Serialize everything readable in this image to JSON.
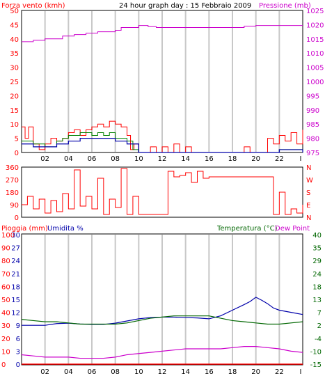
{
  "colors": {
    "wind": "#ff0000",
    "gust": "#008000",
    "wind_dir": "#ff0000",
    "pressure": "#cc00cc",
    "rain": "#ff0000",
    "humidity": "#0000aa",
    "temperature": "#006600",
    "dew_point": "#cc00cc",
    "vgrid": "#c8c8c8",
    "frame": "#000000"
  },
  "header": {
    "title": "24 hour graph day : 15 Febbraio 2009",
    "left_label": "Forza vento (kmh)",
    "right_label": "Pressione (mb)"
  },
  "middle": {
    "right_letters": [
      "N",
      "W",
      "S",
      "E",
      "N"
    ]
  },
  "bottom": {
    "rain_label": "Pioggia (mm)",
    "humidity_label": "Umidita %",
    "temp_label": "Temperatura (°C)",
    "dew_label": "Dew Point"
  },
  "chart_data": [
    {
      "type": "line",
      "title": "24 hour graph day : 15 Febbraio 2009",
      "x_ticks": [
        "02",
        "04",
        "06",
        "08",
        "10",
        "12",
        "14",
        "16",
        "18",
        "20",
        "22",
        "I"
      ],
      "x_tick_hours": [
        2,
        4,
        6,
        8,
        10,
        12,
        14,
        16,
        18,
        20,
        22,
        24
      ],
      "xlim": [
        0,
        24
      ],
      "y_left": {
        "label": "Forza vento (kmh)",
        "ticks": [
          0,
          5,
          10,
          15,
          20,
          25,
          30,
          35,
          40,
          45,
          50
        ],
        "ylim": [
          0,
          50
        ]
      },
      "y_right": {
        "label": "Pressione (mb)",
        "ticks": [
          975,
          980,
          985,
          990,
          995,
          1000,
          1005,
          1010,
          1015,
          1020,
          1025
        ],
        "ylim": [
          975,
          1025
        ]
      },
      "series": [
        {
          "name": "Pressione (mb)",
          "axis": "right",
          "values": [
            [
              0,
              1014
            ],
            [
              1,
              1014.5
            ],
            [
              2,
              1015
            ],
            [
              3.5,
              1016
            ],
            [
              4.5,
              1016.5
            ],
            [
              5.5,
              1017
            ],
            [
              6.5,
              1017.5
            ],
            [
              8,
              1018
            ],
            [
              8.5,
              1019
            ],
            [
              10,
              1019.7
            ],
            [
              10.8,
              1019.3
            ],
            [
              11.5,
              1019
            ],
            [
              12.5,
              1019
            ],
            [
              14.5,
              1019
            ],
            [
              16,
              1019
            ],
            [
              17.5,
              1019
            ],
            [
              19,
              1019.5
            ],
            [
              20,
              1019.7
            ],
            [
              21,
              1019.7
            ],
            [
              23,
              1019.7
            ],
            [
              24,
              1019.7
            ]
          ]
        },
        {
          "name": "wind",
          "axis": "left",
          "values": [
            [
              0,
              9
            ],
            [
              0.3,
              5
            ],
            [
              0.6,
              9
            ],
            [
              1,
              3
            ],
            [
              1.5,
              1
            ],
            [
              2,
              3
            ],
            [
              2.5,
              5
            ],
            [
              3,
              4
            ],
            [
              3.5,
              5
            ],
            [
              4,
              7
            ],
            [
              4.5,
              8
            ],
            [
              5,
              6
            ],
            [
              5.5,
              8
            ],
            [
              6,
              9
            ],
            [
              6.5,
              10
            ],
            [
              7,
              9
            ],
            [
              7.5,
              11
            ],
            [
              8,
              10
            ],
            [
              8.5,
              9
            ],
            [
              9,
              6
            ],
            [
              9.3,
              1
            ],
            [
              9.6,
              3
            ],
            [
              10,
              0
            ],
            [
              11,
              2
            ],
            [
              11.5,
              0
            ],
            [
              12,
              2
            ],
            [
              12.5,
              0
            ],
            [
              13,
              3
            ],
            [
              13.5,
              0
            ],
            [
              14,
              2
            ],
            [
              14.5,
              0
            ],
            [
              15,
              0
            ],
            [
              16,
              0
            ],
            [
              17,
              0
            ],
            [
              18,
              0
            ],
            [
              19,
              2
            ],
            [
              19.5,
              0
            ],
            [
              20,
              0
            ],
            [
              21,
              5
            ],
            [
              21.5,
              3
            ],
            [
              22,
              6
            ],
            [
              22.5,
              4
            ],
            [
              23,
              7
            ],
            [
              23.5,
              3
            ],
            [
              24,
              8
            ]
          ]
        },
        {
          "name": "gust",
          "axis": "left",
          "values": [
            [
              0,
              4
            ],
            [
              1,
              3
            ],
            [
              2,
              2
            ],
            [
              3,
              4
            ],
            [
              3.5,
              5
            ],
            [
              4,
              6
            ],
            [
              4.5,
              6
            ],
            [
              5,
              7
            ],
            [
              5.5,
              7
            ],
            [
              6,
              6
            ],
            [
              6.5,
              7
            ],
            [
              7,
              6
            ],
            [
              7.5,
              7
            ],
            [
              8,
              5
            ],
            [
              8.5,
              5
            ],
            [
              9,
              4
            ],
            [
              9.5,
              1
            ],
            [
              10,
              0
            ],
            [
              11,
              0
            ],
            [
              12,
              0
            ],
            [
              13,
              0
            ],
            [
              14,
              0
            ],
            [
              15,
              0
            ],
            [
              16,
              0
            ],
            [
              17,
              0
            ],
            [
              18,
              0
            ],
            [
              19,
              0
            ],
            [
              20,
              0
            ],
            [
              21,
              0
            ],
            [
              22,
              1
            ],
            [
              23,
              1
            ],
            [
              24,
              1
            ]
          ]
        },
        {
          "name": "avg",
          "axis": "left",
          "values": [
            [
              0,
              3
            ],
            [
              1,
              2
            ],
            [
              2,
              2
            ],
            [
              3,
              3
            ],
            [
              4,
              4
            ],
            [
              5,
              5
            ],
            [
              6,
              5
            ],
            [
              7,
              5
            ],
            [
              8,
              4
            ],
            [
              9,
              3
            ],
            [
              10,
              0
            ],
            [
              12,
              0
            ],
            [
              14,
              0
            ],
            [
              16,
              0
            ],
            [
              18,
              0
            ],
            [
              20,
              0
            ],
            [
              22,
              1
            ],
            [
              24,
              0
            ]
          ]
        }
      ]
    },
    {
      "type": "line",
      "x_ticks": [],
      "xlim": [
        0,
        24
      ],
      "y_left": {
        "ticks": [
          0,
          90,
          180,
          270,
          360
        ],
        "ylim": [
          0,
          360
        ]
      },
      "y_right": {
        "ticks": [
          "N",
          "W",
          "S",
          "E",
          "N"
        ]
      },
      "series": [
        {
          "name": "wind_dir",
          "values": [
            [
              0,
              90
            ],
            [
              0.5,
              150
            ],
            [
              1,
              60
            ],
            [
              1.5,
              130
            ],
            [
              2,
              30
            ],
            [
              2.5,
              120
            ],
            [
              3,
              40
            ],
            [
              3.5,
              170
            ],
            [
              4,
              60
            ],
            [
              4.5,
              340
            ],
            [
              5,
              80
            ],
            [
              5.5,
              150
            ],
            [
              6,
              60
            ],
            [
              6.5,
              280
            ],
            [
              7,
              20
            ],
            [
              7.5,
              130
            ],
            [
              8,
              70
            ],
            [
              8.5,
              350
            ],
            [
              9,
              20
            ],
            [
              9.5,
              150
            ],
            [
              10,
              20
            ],
            [
              11,
              20
            ],
            [
              12,
              20
            ],
            [
              12.5,
              330
            ],
            [
              13,
              290
            ],
            [
              13.5,
              300
            ],
            [
              14,
              320
            ],
            [
              14.5,
              250
            ],
            [
              15,
              330
            ],
            [
              15.5,
              280
            ],
            [
              16,
              290
            ],
            [
              17,
              290
            ],
            [
              18,
              290
            ],
            [
              19,
              290
            ],
            [
              20,
              290
            ],
            [
              21,
              290
            ],
            [
              21.5,
              20
            ],
            [
              22,
              180
            ],
            [
              22.5,
              20
            ],
            [
              23,
              60
            ],
            [
              23.5,
              30
            ],
            [
              24,
              90
            ]
          ]
        }
      ]
    },
    {
      "type": "line",
      "x_ticks": [
        "02",
        "04",
        "06",
        "08",
        "10",
        "12",
        "14",
        "16",
        "18",
        "20",
        "22",
        "I"
      ],
      "xlim": [
        0,
        24
      ],
      "y_left_rain": {
        "label": "Pioggia (mm)",
        "ticks": [
          0,
          10,
          20,
          30,
          40,
          50,
          60,
          70,
          80,
          90,
          100
        ],
        "ylim": [
          0,
          100
        ]
      },
      "y_left_humidity": {
        "label": "Umidita %",
        "ticks": [
          0,
          3,
          6,
          9,
          12,
          15,
          18,
          21,
          24,
          27,
          30
        ],
        "ylim": [
          0,
          30
        ]
      },
      "y_right": {
        "label": "Temperatura (°C)",
        "ticks": [
          -15,
          -10,
          -4,
          2,
          7,
          13,
          18,
          24,
          29,
          35,
          40
        ],
        "ylim": [
          -15,
          40
        ]
      },
      "series": [
        {
          "name": "Umidita %",
          "values": [
            [
              0,
              9
            ],
            [
              1,
              9
            ],
            [
              2,
              9
            ],
            [
              3,
              9.4
            ],
            [
              4,
              9.5
            ],
            [
              5,
              9.3
            ],
            [
              6,
              9.2
            ],
            [
              7,
              9.2
            ],
            [
              8,
              9.5
            ],
            [
              9,
              10
            ],
            [
              10,
              10.5
            ],
            [
              11,
              10.8
            ],
            [
              12,
              10.9
            ],
            [
              13,
              10.9
            ],
            [
              14,
              10.8
            ],
            [
              15,
              10.7
            ],
            [
              16,
              10.5
            ],
            [
              17,
              11.2
            ],
            [
              18,
              12.5
            ],
            [
              19,
              13.8
            ],
            [
              19.5,
              14.5
            ],
            [
              20,
              15.5
            ],
            [
              20.5,
              14.8
            ],
            [
              21,
              14
            ],
            [
              21.5,
              13
            ],
            [
              22,
              12.5
            ],
            [
              23,
              12
            ],
            [
              24,
              11.5
            ]
          ]
        },
        {
          "name": "Temperatura (°C)",
          "values": [
            [
              0,
              4
            ],
            [
              1,
              3.5
            ],
            [
              2,
              3
            ],
            [
              3,
              3
            ],
            [
              4,
              2.5
            ],
            [
              5,
              2
            ],
            [
              6,
              2
            ],
            [
              7,
              2
            ],
            [
              8,
              2
            ],
            [
              9,
              2.5
            ],
            [
              10,
              3.5
            ],
            [
              11,
              4.5
            ],
            [
              12,
              5
            ],
            [
              13,
              5.5
            ],
            [
              14,
              5.5
            ],
            [
              15,
              5.5
            ],
            [
              16,
              5.5
            ],
            [
              17,
              4.5
            ],
            [
              18,
              3.5
            ],
            [
              19,
              3
            ],
            [
              20,
              2.5
            ],
            [
              21,
              2
            ],
            [
              22,
              2
            ],
            [
              23,
              2.5
            ],
            [
              24,
              3
            ]
          ]
        },
        {
          "name": "Dew Point",
          "values": [
            [
              0,
              -11
            ],
            [
              1,
              -11.5
            ],
            [
              2,
              -12
            ],
            [
              3,
              -12
            ],
            [
              4,
              -12
            ],
            [
              5,
              -12.5
            ],
            [
              6,
              -12.5
            ],
            [
              7,
              -12.5
            ],
            [
              8,
              -12
            ],
            [
              9,
              -11
            ],
            [
              10,
              -10.5
            ],
            [
              11,
              -10
            ],
            [
              12,
              -9.5
            ],
            [
              13,
              -9
            ],
            [
              14,
              -8.5
            ],
            [
              15,
              -8.5
            ],
            [
              16,
              -8.5
            ],
            [
              17,
              -8.5
            ],
            [
              18,
              -8
            ],
            [
              19,
              -7.5
            ],
            [
              20,
              -7.5
            ],
            [
              21,
              -8
            ],
            [
              22,
              -8.5
            ],
            [
              23,
              -9.5
            ],
            [
              24,
              -10
            ]
          ]
        },
        {
          "name": "Pioggia (mm)",
          "values": [
            [
              0,
              0
            ],
            [
              24,
              0
            ]
          ]
        }
      ]
    }
  ]
}
